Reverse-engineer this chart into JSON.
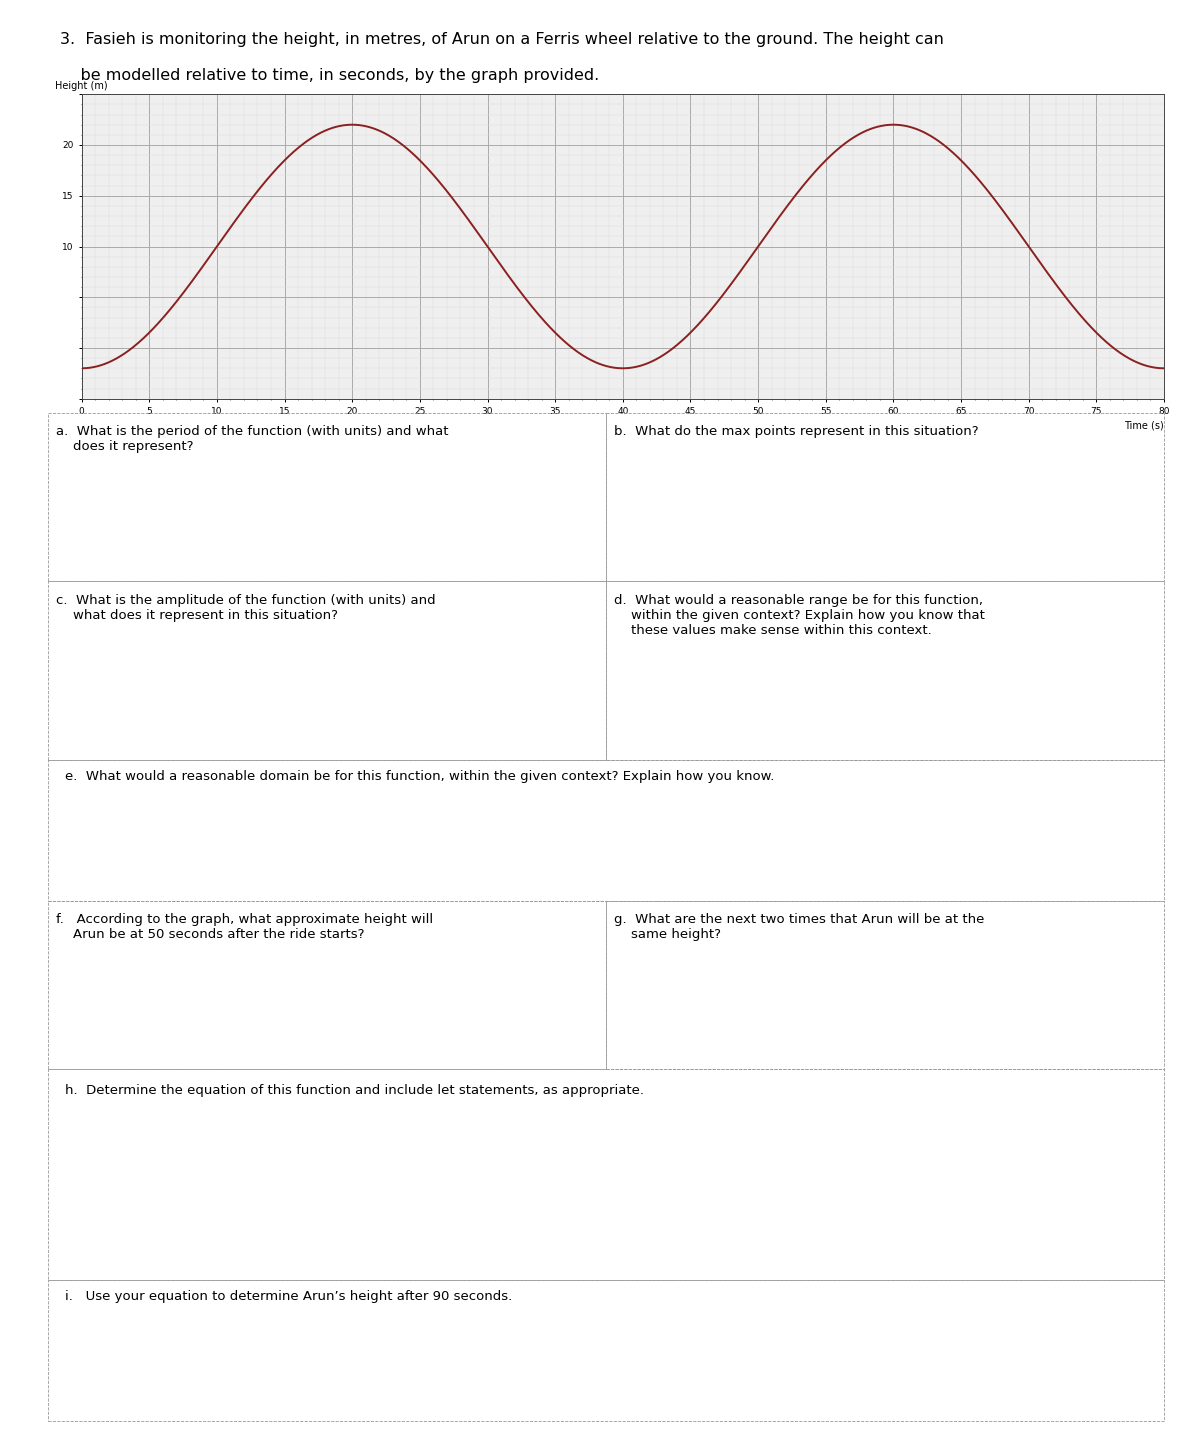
{
  "title_line1": "3.  Fasieh is monitoring the height, in metres, of Arun on a Ferris wheel relative to the ground. The height can",
  "title_line2": "    be modelled relative to time, in seconds, by the graph provided.",
  "xlabel": "Time (s)",
  "ylabel": "Height (m)",
  "x_min": 0,
  "x_max": 80,
  "y_min": -5,
  "y_max": 25,
  "y_ticks_labeled": [
    10,
    15,
    20
  ],
  "amplitude": 12,
  "midline": 10,
  "period": 40,
  "curve_color": "#8B2020",
  "grid_major_color": "#AAAAAA",
  "grid_minor_color": "#DDDDDD",
  "background_color": "#FFFFFF",
  "graph_bg_color": "#EFEFEF",
  "border_color": "#999999",
  "font_size_title": 11.5,
  "font_size_question": 9.5,
  "font_size_axis_label": 7,
  "font_size_tick": 6.5,
  "q_texts": {
    "a": "a.  What is the period of the function (with units) and what\n    does it represent?",
    "b": "b.  What do the max points represent in this situation?",
    "c": "c.  What is the amplitude of the function (with units) and\n    what does it represent in this situation?",
    "d": "d.  What would a reasonable range be for this function,\n    within the given context? Explain how you know that\n    these values make sense within this context.",
    "e": "e.  What would a reasonable domain be for this function, within the given context? Explain how you know.",
    "f": "f.   According to the graph, what approximate height will\n    Arun be at 50 seconds after the ride starts?",
    "g": "g.  What are the next two times that Arun will be at the\n    same height?",
    "h": "h.  Determine the equation of this function and include let statements, as appropriate.",
    "i": "i.   Use your equation to determine Arun’s height after 90 seconds."
  }
}
